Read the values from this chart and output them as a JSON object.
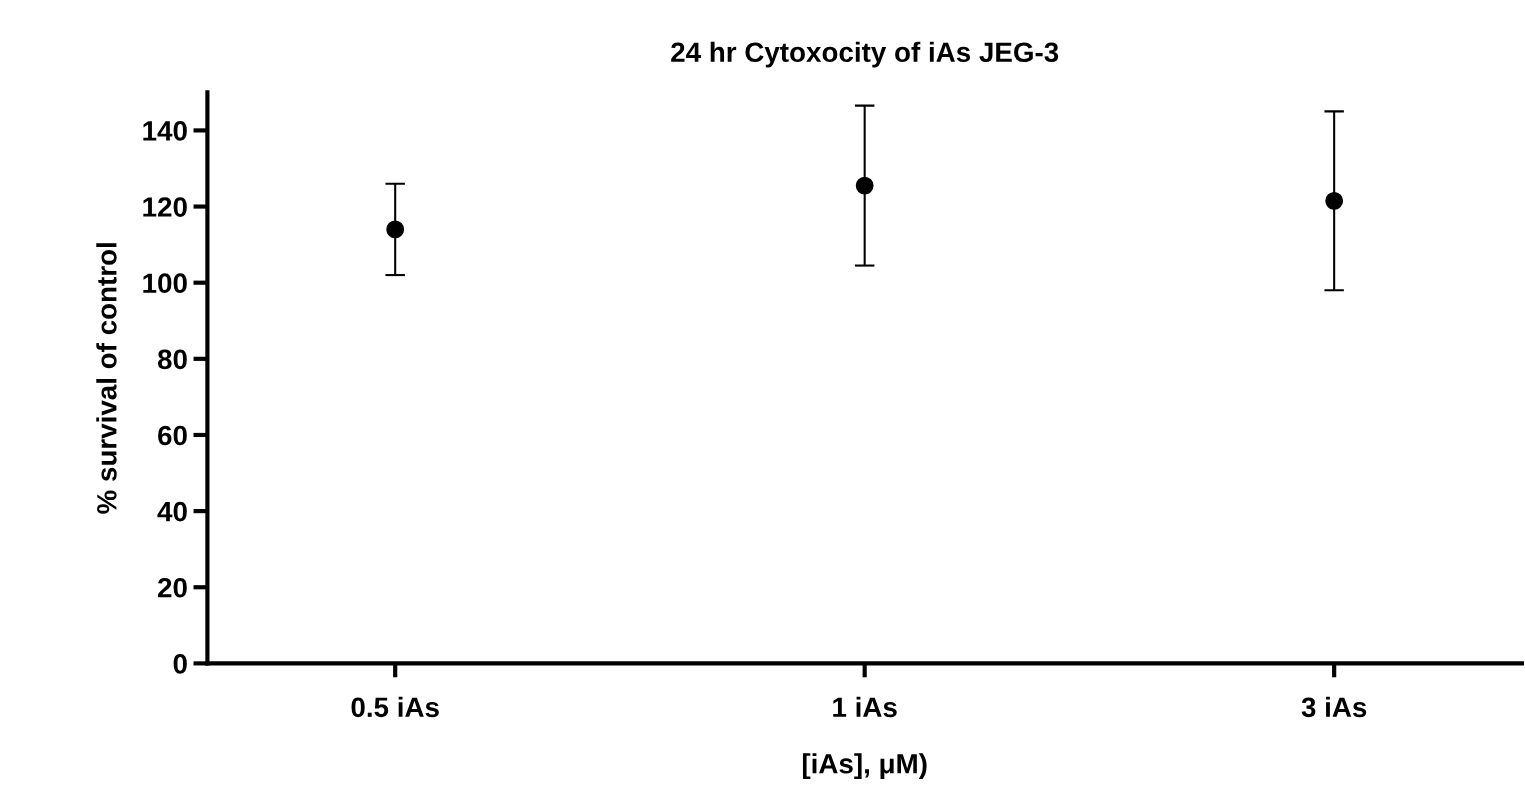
{
  "chart_data": {
    "type": "scatter",
    "title": "24 hr Cytoxocity of iAs JEG-3",
    "xlabel": "[iAs], μM)",
    "ylabel": "% survival of control",
    "categories": [
      "0.5 iAs",
      "1 iAs",
      "3 iAs"
    ],
    "series": [
      {
        "color": "#000000",
        "values": [
          114,
          125.5,
          121.5
        ],
        "errors": [
          12,
          21,
          23.5
        ]
      }
    ],
    "ylim": [
      0,
      150
    ],
    "yticks": [
      0,
      20,
      40,
      60,
      80,
      100,
      120,
      140
    ],
    "marker": "circle",
    "grid": false,
    "legend": false
  }
}
